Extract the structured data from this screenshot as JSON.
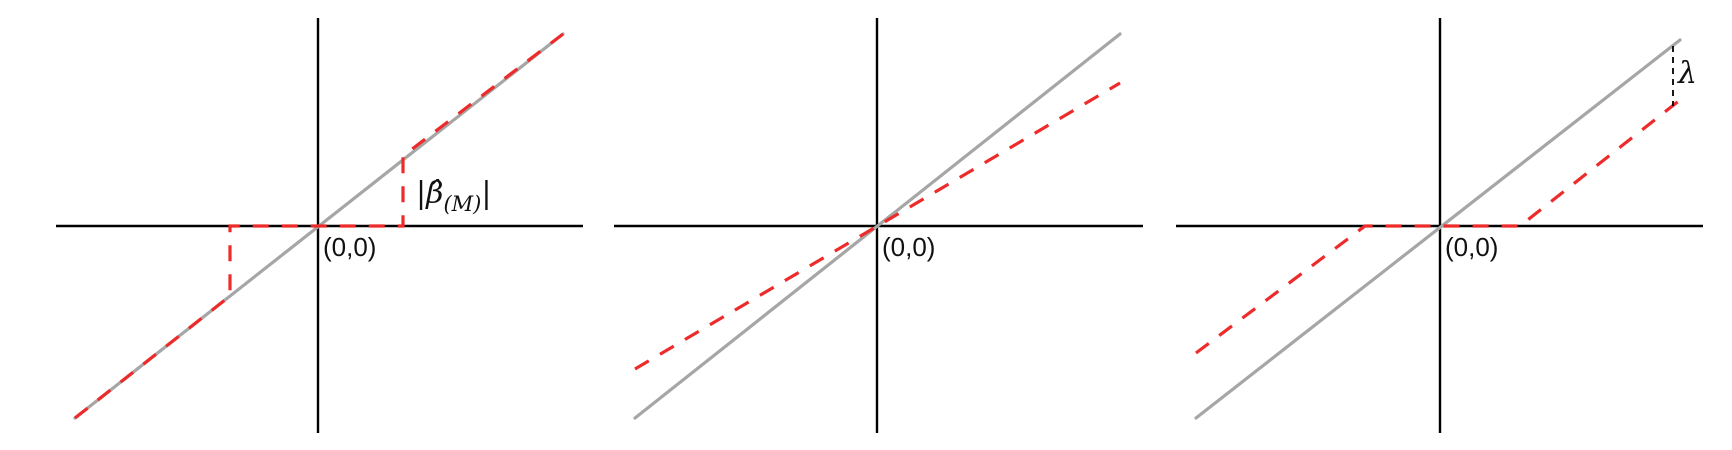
{
  "figure": {
    "panels": [
      {
        "origin_label": "(0,0)",
        "annotation": {
          "bar_left": "|",
          "beta": "β̂",
          "sub_open": "(",
          "sub_var": "M",
          "sub_close": ")",
          "bar_right": "|"
        }
      },
      {
        "origin_label": "(0,0)"
      },
      {
        "origin_label": "(0,0)",
        "annotation": {
          "lambda": "λ"
        }
      }
    ],
    "colors": {
      "identity_line": "#a6a6a6",
      "estimator_line": "#ee2b2b",
      "axes": "#000000"
    }
  }
}
